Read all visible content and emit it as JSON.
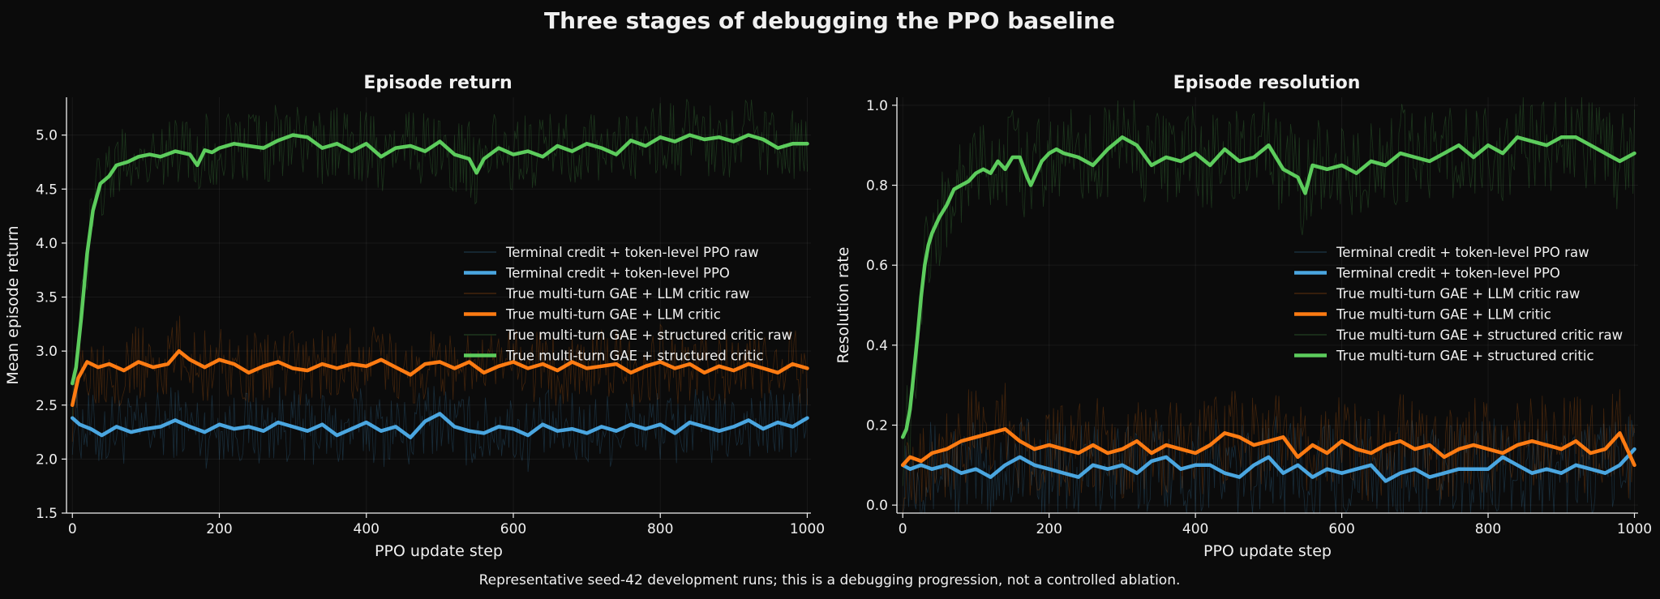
{
  "figure": {
    "suptitle": "Three stages of debugging the PPO baseline",
    "caption": "Representative seed-42 development runs; this is a debugging progression, not a controlled ablation.",
    "background": "#0b0b0b"
  },
  "colors": {
    "terminal": "#4aa6e0",
    "llm": "#ff7b12",
    "structured": "#5ccc5c"
  },
  "legend_entries": [
    {
      "label": "Terminal credit + token-level PPO raw",
      "color": "#4aa6e0",
      "style": "raw"
    },
    {
      "label": "Terminal credit + token-level PPO",
      "color": "#4aa6e0",
      "style": "smooth"
    },
    {
      "label": "True multi-turn GAE + LLM critic raw",
      "color": "#ff7b12",
      "style": "raw"
    },
    {
      "label": "True multi-turn GAE + LLM critic",
      "color": "#ff7b12",
      "style": "smooth"
    },
    {
      "label": "True multi-turn GAE + structured critic raw",
      "color": "#5ccc5c",
      "style": "raw"
    },
    {
      "label": "True multi-turn GAE + structured critic",
      "color": "#5ccc5c",
      "style": "smooth"
    }
  ],
  "chart_data": [
    {
      "type": "line",
      "title": "Episode return",
      "xlabel": "PPO update step",
      "ylabel": "Mean episode return",
      "xlim": [
        -8,
        1005
      ],
      "ylim": [
        1.5,
        5.35
      ],
      "xticks": [
        0,
        200,
        400,
        600,
        800,
        1000
      ],
      "yticks": [
        1.5,
        2.0,
        2.5,
        3.0,
        3.5,
        4.0,
        4.5,
        5.0
      ],
      "ytick_labels": [
        "1.5",
        "2.0",
        "2.5",
        "3.0",
        "3.5",
        "4.0",
        "4.5",
        "5.0"
      ],
      "grid": true,
      "legend": "center-right",
      "series": [
        {
          "name": "Terminal credit + token-level PPO",
          "color": "#4aa6e0",
          "x": [
            0,
            10,
            25,
            40,
            60,
            80,
            100,
            120,
            140,
            160,
            180,
            200,
            220,
            240,
            260,
            280,
            300,
            320,
            340,
            360,
            380,
            400,
            420,
            440,
            460,
            480,
            500,
            520,
            540,
            560,
            580,
            600,
            620,
            640,
            660,
            680,
            700,
            720,
            740,
            760,
            780,
            800,
            820,
            840,
            860,
            880,
            900,
            920,
            940,
            960,
            980,
            1000
          ],
          "y": [
            2.38,
            2.32,
            2.28,
            2.22,
            2.3,
            2.25,
            2.28,
            2.3,
            2.36,
            2.3,
            2.25,
            2.32,
            2.28,
            2.3,
            2.26,
            2.34,
            2.3,
            2.26,
            2.32,
            2.22,
            2.28,
            2.34,
            2.26,
            2.3,
            2.2,
            2.35,
            2.42,
            2.3,
            2.26,
            2.24,
            2.3,
            2.28,
            2.22,
            2.32,
            2.26,
            2.28,
            2.24,
            2.3,
            2.26,
            2.32,
            2.28,
            2.32,
            2.24,
            2.34,
            2.3,
            2.26,
            2.3,
            2.36,
            2.28,
            2.34,
            2.3,
            2.38
          ]
        },
        {
          "name": "True multi-turn GAE + LLM critic",
          "color": "#ff7b12",
          "x": [
            0,
            8,
            20,
            35,
            50,
            70,
            90,
            110,
            130,
            145,
            160,
            180,
            200,
            220,
            240,
            260,
            280,
            300,
            320,
            340,
            360,
            380,
            400,
            420,
            440,
            460,
            480,
            500,
            520,
            540,
            560,
            580,
            600,
            620,
            640,
            660,
            680,
            700,
            720,
            740,
            760,
            780,
            800,
            820,
            840,
            860,
            880,
            900,
            920,
            940,
            960,
            980,
            1000
          ],
          "y": [
            2.5,
            2.75,
            2.9,
            2.85,
            2.88,
            2.82,
            2.9,
            2.85,
            2.88,
            3.0,
            2.92,
            2.85,
            2.92,
            2.88,
            2.8,
            2.86,
            2.9,
            2.84,
            2.82,
            2.88,
            2.84,
            2.88,
            2.86,
            2.92,
            2.85,
            2.78,
            2.88,
            2.9,
            2.84,
            2.9,
            2.8,
            2.86,
            2.9,
            2.84,
            2.88,
            2.82,
            2.9,
            2.84,
            2.86,
            2.88,
            2.8,
            2.86,
            2.9,
            2.84,
            2.88,
            2.8,
            2.86,
            2.82,
            2.88,
            2.84,
            2.8,
            2.88,
            2.84
          ]
        },
        {
          "name": "True multi-turn GAE + structured critic",
          "color": "#5ccc5c",
          "x": [
            0,
            5,
            12,
            20,
            28,
            38,
            50,
            60,
            75,
            90,
            105,
            120,
            140,
            160,
            170,
            180,
            190,
            200,
            220,
            240,
            260,
            280,
            300,
            320,
            340,
            360,
            380,
            400,
            420,
            440,
            460,
            480,
            500,
            520,
            540,
            550,
            560,
            580,
            600,
            620,
            640,
            660,
            680,
            700,
            720,
            740,
            760,
            780,
            800,
            820,
            840,
            860,
            880,
            900,
            920,
            940,
            960,
            980,
            1000
          ],
          "y": [
            2.7,
            2.85,
            3.3,
            3.9,
            4.3,
            4.55,
            4.62,
            4.72,
            4.75,
            4.8,
            4.82,
            4.8,
            4.85,
            4.82,
            4.72,
            4.86,
            4.84,
            4.88,
            4.92,
            4.9,
            4.88,
            4.95,
            5.0,
            4.98,
            4.88,
            4.92,
            4.85,
            4.92,
            4.8,
            4.88,
            4.9,
            4.85,
            4.94,
            4.82,
            4.78,
            4.65,
            4.78,
            4.88,
            4.82,
            4.85,
            4.8,
            4.9,
            4.85,
            4.92,
            4.88,
            4.82,
            4.95,
            4.9,
            4.98,
            4.94,
            5.0,
            4.96,
            4.98,
            4.94,
            5.0,
            4.96,
            4.88,
            4.92,
            4.92
          ]
        }
      ]
    },
    {
      "type": "line",
      "title": "Episode resolution",
      "xlabel": "PPO update step",
      "ylabel": "Resolution rate",
      "xlim": [
        -8,
        1005
      ],
      "ylim": [
        -0.02,
        1.02
      ],
      "xticks": [
        0,
        200,
        400,
        600,
        800,
        1000
      ],
      "yticks": [
        0.0,
        0.2,
        0.4,
        0.6,
        0.8,
        1.0
      ],
      "ytick_labels": [
        "0.0",
        "0.2",
        "0.4",
        "0.6",
        "0.8",
        "1.0"
      ],
      "grid": true,
      "legend": "center-right",
      "series": [
        {
          "name": "Terminal credit + token-level PPO",
          "color": "#4aa6e0",
          "x": [
            0,
            10,
            25,
            40,
            60,
            80,
            100,
            120,
            140,
            160,
            180,
            200,
            220,
            240,
            260,
            280,
            300,
            320,
            340,
            360,
            380,
            400,
            420,
            440,
            460,
            480,
            500,
            520,
            540,
            560,
            580,
            600,
            620,
            640,
            660,
            680,
            700,
            720,
            740,
            760,
            780,
            800,
            820,
            840,
            860,
            880,
            900,
            920,
            940,
            960,
            980,
            1000
          ],
          "y": [
            0.1,
            0.09,
            0.1,
            0.09,
            0.1,
            0.08,
            0.09,
            0.07,
            0.1,
            0.12,
            0.1,
            0.09,
            0.08,
            0.07,
            0.1,
            0.09,
            0.1,
            0.08,
            0.11,
            0.12,
            0.09,
            0.1,
            0.1,
            0.08,
            0.07,
            0.1,
            0.12,
            0.08,
            0.1,
            0.07,
            0.09,
            0.08,
            0.09,
            0.1,
            0.06,
            0.08,
            0.09,
            0.07,
            0.08,
            0.09,
            0.09,
            0.09,
            0.12,
            0.1,
            0.08,
            0.09,
            0.08,
            0.1,
            0.09,
            0.08,
            0.1,
            0.14
          ]
        },
        {
          "name": "True multi-turn GAE + LLM critic",
          "color": "#ff7b12",
          "x": [
            0,
            10,
            25,
            40,
            60,
            80,
            100,
            120,
            140,
            160,
            180,
            200,
            220,
            240,
            260,
            280,
            300,
            320,
            340,
            360,
            380,
            400,
            420,
            440,
            460,
            480,
            500,
            520,
            540,
            560,
            580,
            600,
            620,
            640,
            660,
            680,
            700,
            720,
            740,
            760,
            780,
            800,
            820,
            840,
            860,
            880,
            900,
            920,
            940,
            960,
            980,
            1000
          ],
          "y": [
            0.1,
            0.12,
            0.11,
            0.13,
            0.14,
            0.16,
            0.17,
            0.18,
            0.19,
            0.16,
            0.14,
            0.15,
            0.14,
            0.13,
            0.15,
            0.13,
            0.14,
            0.16,
            0.13,
            0.15,
            0.14,
            0.13,
            0.15,
            0.18,
            0.17,
            0.15,
            0.16,
            0.17,
            0.12,
            0.15,
            0.13,
            0.16,
            0.14,
            0.13,
            0.15,
            0.16,
            0.14,
            0.15,
            0.12,
            0.14,
            0.15,
            0.14,
            0.13,
            0.15,
            0.16,
            0.15,
            0.14,
            0.16,
            0.13,
            0.14,
            0.18,
            0.1
          ]
        },
        {
          "name": "True multi-turn GAE + structured critic",
          "color": "#5ccc5c",
          "x": [
            0,
            5,
            10,
            15,
            20,
            25,
            30,
            35,
            40,
            45,
            50,
            60,
            70,
            80,
            90,
            100,
            110,
            120,
            130,
            140,
            150,
            160,
            170,
            175,
            180,
            190,
            200,
            210,
            220,
            240,
            260,
            280,
            300,
            320,
            340,
            360,
            380,
            400,
            420,
            440,
            460,
            480,
            500,
            520,
            540,
            550,
            560,
            580,
            600,
            620,
            640,
            660,
            680,
            700,
            720,
            740,
            760,
            780,
            800,
            820,
            840,
            860,
            880,
            900,
            920,
            940,
            960,
            980,
            1000
          ],
          "y": [
            0.17,
            0.19,
            0.24,
            0.33,
            0.42,
            0.52,
            0.6,
            0.65,
            0.68,
            0.7,
            0.72,
            0.75,
            0.79,
            0.8,
            0.81,
            0.83,
            0.84,
            0.83,
            0.86,
            0.84,
            0.87,
            0.87,
            0.82,
            0.8,
            0.82,
            0.86,
            0.88,
            0.89,
            0.88,
            0.87,
            0.85,
            0.89,
            0.92,
            0.9,
            0.85,
            0.87,
            0.86,
            0.88,
            0.85,
            0.89,
            0.86,
            0.87,
            0.9,
            0.84,
            0.82,
            0.78,
            0.85,
            0.84,
            0.85,
            0.83,
            0.86,
            0.85,
            0.88,
            0.87,
            0.86,
            0.88,
            0.9,
            0.87,
            0.9,
            0.88,
            0.92,
            0.91,
            0.9,
            0.92,
            0.92,
            0.9,
            0.88,
            0.86,
            0.88
          ]
        }
      ]
    }
  ]
}
